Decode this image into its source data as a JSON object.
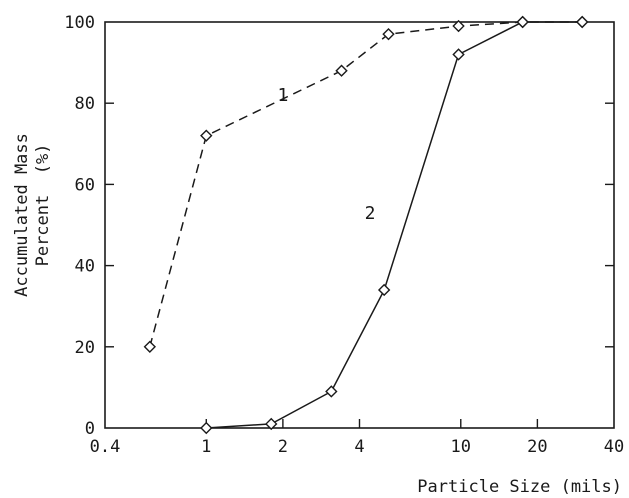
{
  "chart_data": {
    "type": "line",
    "xscale": "log",
    "xlabel": "Particle Size (mils)",
    "ylabel": [
      "Accumulated Mass",
      "Percent  (%)"
    ],
    "xlim": [
      0.4,
      40
    ],
    "ylim": [
      0,
      100
    ],
    "x_ticks": [
      {
        "value": 0.4,
        "label": "0.4"
      },
      {
        "value": 1,
        "label": "1"
      },
      {
        "value": 2,
        "label": "2"
      },
      {
        "value": 4,
        "label": "4"
      },
      {
        "value": 10,
        "label": "10"
      },
      {
        "value": 20,
        "label": "20"
      },
      {
        "value": 40,
        "label": "40"
      }
    ],
    "y_ticks": [
      {
        "value": 0,
        "label": "0"
      },
      {
        "value": 20,
        "label": "20"
      },
      {
        "value": 40,
        "label": "40"
      },
      {
        "value": 60,
        "label": "60"
      },
      {
        "value": 80,
        "label": "80"
      },
      {
        "value": 100,
        "label": "100"
      }
    ],
    "grid": false,
    "series": [
      {
        "name": "1",
        "line_style": "dashed",
        "marker": "diamond",
        "points": [
          {
            "x": 0.6,
            "y": 20
          },
          {
            "x": 1.0,
            "y": 72
          },
          {
            "x": 3.4,
            "y": 88
          },
          {
            "x": 5.2,
            "y": 97
          },
          {
            "x": 9.8,
            "y": 99
          },
          {
            "x": 17.5,
            "y": 100
          },
          {
            "x": 30,
            "y": 100
          }
        ]
      },
      {
        "name": "2",
        "line_style": "solid",
        "marker": "diamond",
        "points": [
          {
            "x": 1.0,
            "y": 0
          },
          {
            "x": 1.8,
            "y": 1
          },
          {
            "x": 3.1,
            "y": 9
          },
          {
            "x": 5.0,
            "y": 34
          },
          {
            "x": 9.8,
            "y": 92
          },
          {
            "x": 17.5,
            "y": 100
          },
          {
            "x": 30,
            "y": 100
          }
        ]
      }
    ]
  }
}
